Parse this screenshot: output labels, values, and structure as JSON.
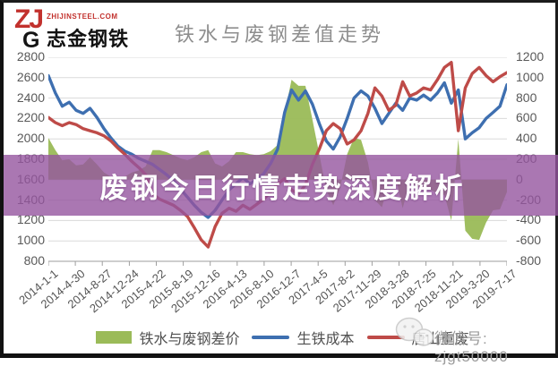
{
  "brand": {
    "logo_zj": "ZJ",
    "logo_g": "G",
    "site": "ZHIJINSTEEL.COM",
    "name": "志金钢铁"
  },
  "title": "铁水与废钢差值走势",
  "banner": {
    "text": "废钢今日行情走势深度解析",
    "color": "#95559F"
  },
  "footer": {
    "wechat": "微信号: zjgt50000"
  },
  "chart_data": {
    "type": "line",
    "subtype": "area+line combo, dual y-axis",
    "title": "铁水与废钢差值走势",
    "grid": true,
    "legend_position": "bottom",
    "x_labels": [
      "2014-1-1",
      "2014-4-30",
      "2014-8-27",
      "2014-12-24",
      "2015-4-22",
      "2015-8-19",
      "2015-12-16",
      "2016-4-13",
      "2016-8-10",
      "2016-12-7",
      "2017-4-5",
      "2017-8-2",
      "2017-11-29",
      "2018-3-28",
      "2018-7-25",
      "2018-11-21",
      "2019-3-20",
      "2019-7-17"
    ],
    "left_axis": {
      "min": 800,
      "max": 2800,
      "step": 200,
      "ticks": [
        2800,
        2600,
        2400,
        2200,
        2000,
        1800,
        1600,
        1400,
        1200,
        1000,
        800
      ]
    },
    "right_axis": {
      "min": -800,
      "max": 1200,
      "step": 200,
      "ticks": [
        1200,
        1000,
        800,
        600,
        400,
        200,
        0,
        -200,
        -400,
        -600,
        -800
      ]
    },
    "sampling": "monthly estimates 2014-01 to 2019-07",
    "series": [
      {
        "name": "铁水与废钢差价",
        "type": "area",
        "axis": "right",
        "color": "#9BBB59",
        "values": [
          410,
          290,
          190,
          200,
          140,
          150,
          220,
          150,
          70,
          30,
          20,
          30,
          70,
          90,
          130,
          290,
          290,
          270,
          240,
          210,
          190,
          220,
          270,
          290,
          160,
          130,
          180,
          270,
          270,
          250,
          240,
          250,
          280,
          340,
          650,
          980,
          920,
          920,
          590,
          250,
          -100,
          -250,
          -80,
          250,
          410,
          390,
          170,
          -200,
          -270,
          -30,
          20,
          -280,
          -20,
          -70,
          -70,
          -100,
          -130,
          -150,
          -400,
          400,
          -500,
          -580,
          -590,
          -420,
          -300,
          -290,
          -120
        ]
      },
      {
        "name": "生铁成本",
        "type": "line",
        "axis": "left",
        "color": "#3E6FB0",
        "values": [
          2620,
          2450,
          2320,
          2360,
          2280,
          2250,
          2300,
          2210,
          2100,
          2010,
          1930,
          1880,
          1850,
          1810,
          1780,
          1750,
          1700,
          1650,
          1590,
          1510,
          1430,
          1350,
          1280,
          1230,
          1300,
          1400,
          1500,
          1560,
          1620,
          1560,
          1600,
          1660,
          1760,
          1900,
          2260,
          2480,
          2380,
          2470,
          2340,
          2150,
          1980,
          1900,
          2020,
          2200,
          2400,
          2470,
          2420,
          2300,
          2150,
          2250,
          2350,
          2280,
          2400,
          2380,
          2430,
          2380,
          2450,
          2550,
          2350,
          2480,
          2000,
          2060,
          2110,
          2200,
          2260,
          2320,
          2530
        ]
      },
      {
        "name": "唐山重废",
        "type": "line",
        "axis": "left",
        "color": "#BE4B48",
        "values": [
          2210,
          2160,
          2130,
          2160,
          2140,
          2100,
          2080,
          2060,
          2030,
          1980,
          1910,
          1850,
          1780,
          1720,
          1650,
          1460,
          1410,
          1380,
          1350,
          1300,
          1240,
          1130,
          1010,
          940,
          1140,
          1270,
          1320,
          1290,
          1350,
          1310,
          1360,
          1410,
          1480,
          1560,
          1610,
          1500,
          1460,
          1550,
          1750,
          1900,
          2080,
          2150,
          2100,
          1950,
          1990,
          2080,
          2250,
          2500,
          2420,
          2280,
          2330,
          2560,
          2420,
          2450,
          2500,
          2480,
          2580,
          2700,
          2750,
          2080,
          2500,
          2640,
          2700,
          2620,
          2560,
          2610,
          2650
        ]
      }
    ]
  }
}
